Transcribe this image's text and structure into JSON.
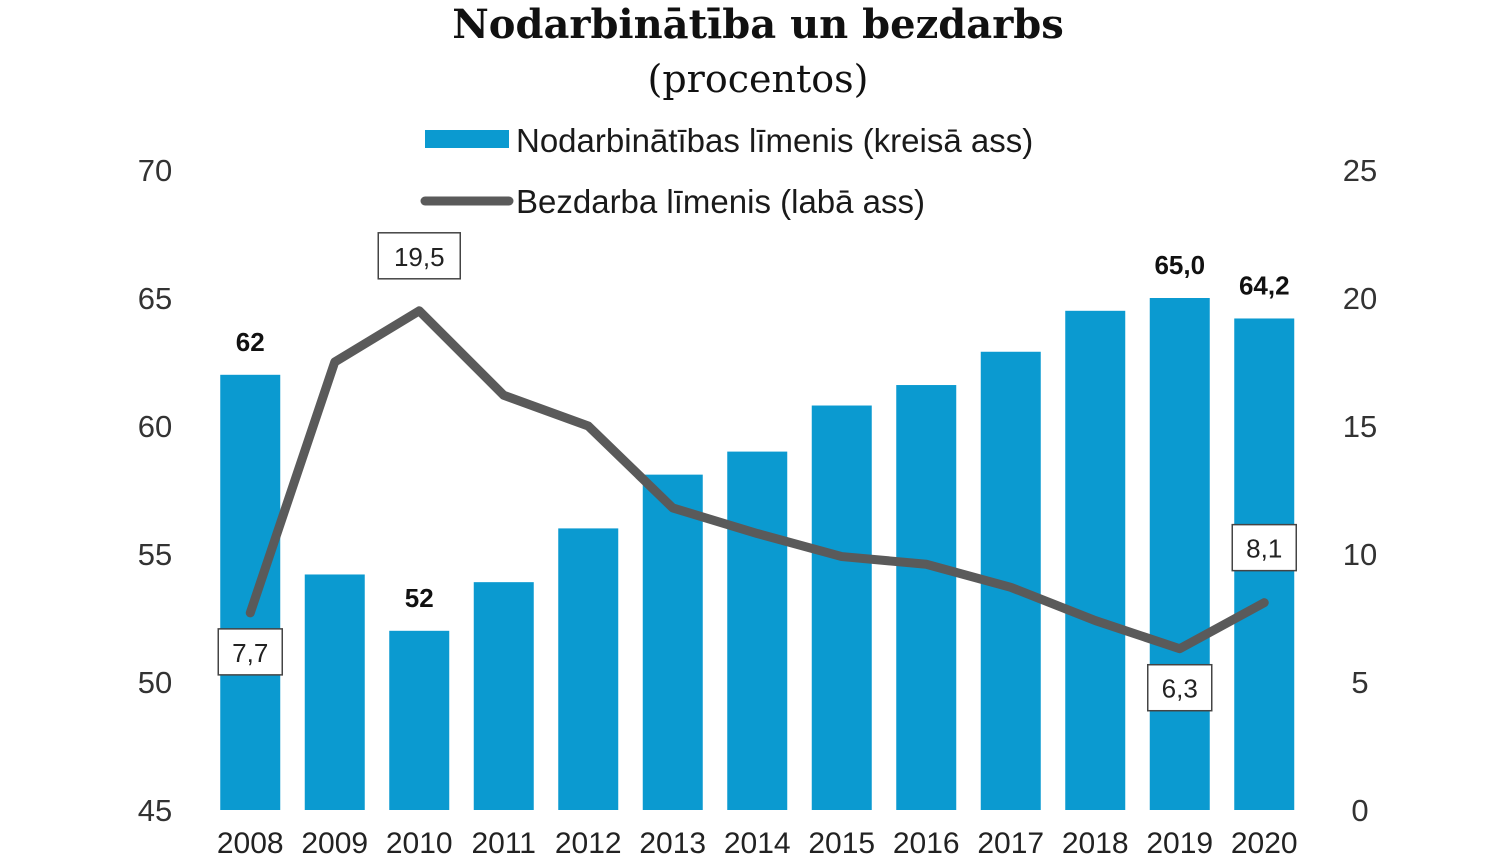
{
  "chart_data": {
    "type": "bar+line",
    "title": "Nodarbinātība un bezdarbs",
    "subtitle": "(procentos)",
    "categories": [
      "2008",
      "2009",
      "2010",
      "2011",
      "2012",
      "2013",
      "2014",
      "2015",
      "2016",
      "2017",
      "2018",
      "2019",
      "2020"
    ],
    "series": [
      {
        "name": "Nodarbinātības līmenis (kreisā ass)",
        "type": "bar",
        "axis": "left",
        "color": "#0b9ad0",
        "values": [
          62.0,
          54.2,
          52.0,
          53.9,
          56.0,
          58.1,
          59.0,
          60.8,
          61.6,
          62.9,
          64.5,
          65.0,
          64.2
        ]
      },
      {
        "name": "Bezdarba līmenis (labā ass)",
        "type": "line",
        "axis": "right",
        "color": "#5a5a5a",
        "values": [
          7.7,
          17.5,
          19.5,
          16.2,
          15.0,
          11.8,
          10.8,
          9.9,
          9.6,
          8.7,
          7.4,
          6.3,
          8.1
        ]
      }
    ],
    "left_axis": {
      "min": 45,
      "max": 70,
      "ticks": [
        "45",
        "50",
        "55",
        "60",
        "65",
        "70"
      ]
    },
    "right_axis": {
      "min": 0,
      "max": 25,
      "ticks": [
        "0",
        "5",
        "10",
        "15",
        "20",
        "25"
      ]
    },
    "bar_labels": [
      {
        "index": 0,
        "text": "62"
      },
      {
        "index": 2,
        "text": "52"
      },
      {
        "index": 11,
        "text": "65,0"
      },
      {
        "index": 12,
        "text": "64,2"
      }
    ],
    "line_labels": [
      {
        "index": 0,
        "text": "7,7",
        "position": "below"
      },
      {
        "index": 2,
        "text": "19,5",
        "position": "above"
      },
      {
        "index": 11,
        "text": "6,3",
        "position": "below"
      },
      {
        "index": 12,
        "text": "8,1",
        "position": "above"
      }
    ],
    "legend": {
      "position": "top-center"
    },
    "grid": false
  }
}
